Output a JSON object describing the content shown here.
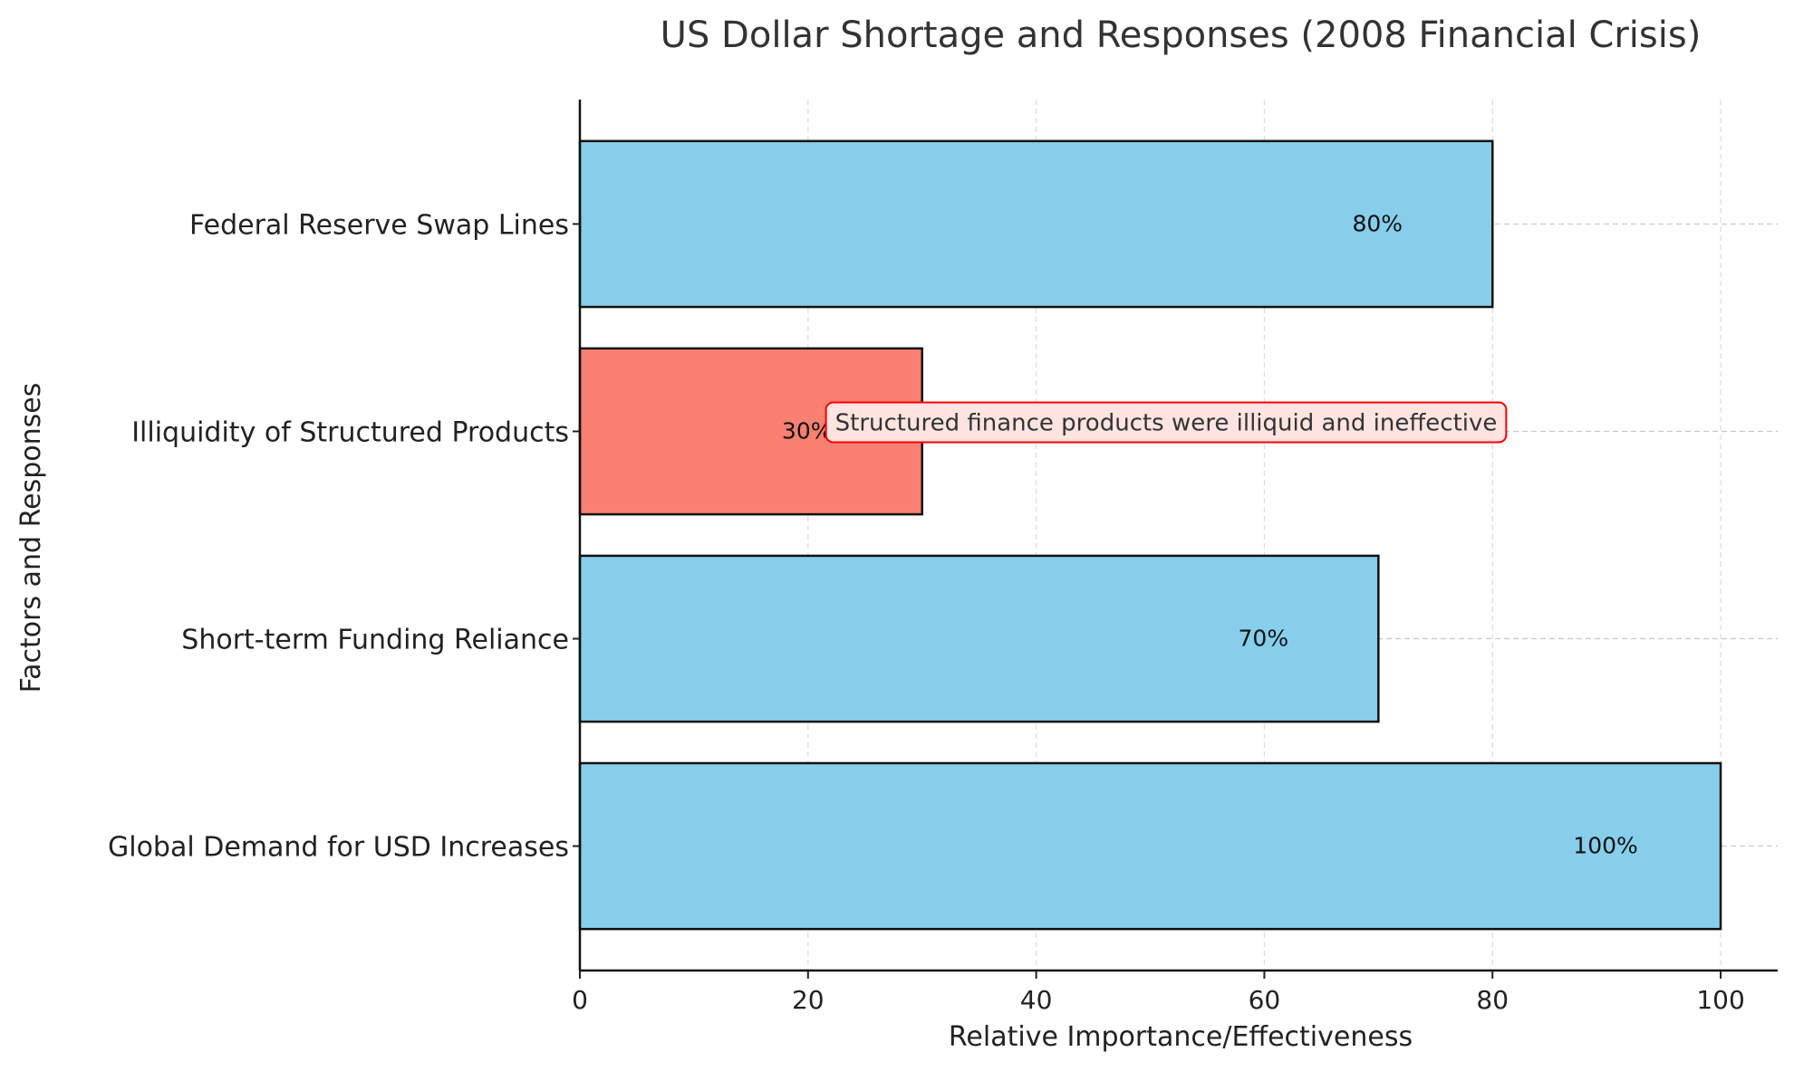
{
  "chart_data": {
    "type": "bar",
    "orientation": "horizontal",
    "title": "US Dollar Shortage and Responses (2008 Financial Crisis)",
    "xlabel": "Relative Importance/Effectiveness",
    "ylabel": "Factors and Responses",
    "categories": [
      "Global Demand for USD Increases",
      "Short-term Funding Reliance",
      "Illiquidity of Structured Products",
      "Federal Reserve Swap Lines"
    ],
    "values": [
      100,
      70,
      30,
      80
    ],
    "value_labels": [
      "100%",
      "70%",
      "30%",
      "80%"
    ],
    "bar_colors": [
      "#87CEEB",
      "#87CEEB",
      "#FA8072",
      "#87CEEB"
    ],
    "xlim": [
      0,
      105
    ],
    "xticks": [
      0,
      20,
      40,
      60,
      80,
      100
    ],
    "grid": true,
    "annotation": {
      "category": "Illiquidity of Structured Products",
      "text": "Structured finance products were illiquid and ineffective",
      "box_fill": "#FFE4E1",
      "box_edge": "#FF0000"
    }
  }
}
